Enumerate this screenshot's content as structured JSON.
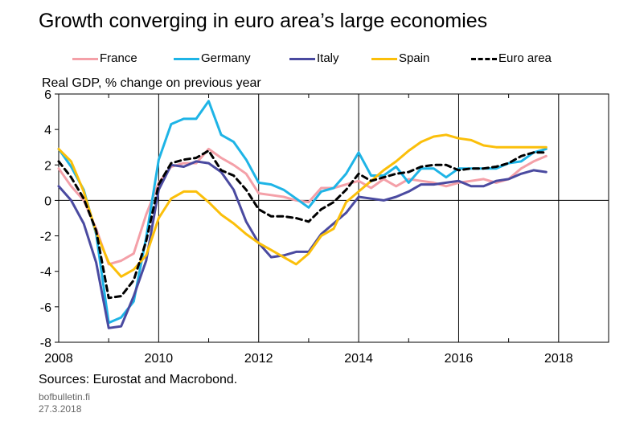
{
  "title": "Growth converging in euro area’s large economies",
  "unit_label": "Real GDP, % change on previous year",
  "sources": "Sources: Eurostat and Macrobond.",
  "site": "bofbulletin.fi",
  "date": "27.3.2018",
  "chart_data": {
    "type": "line",
    "title": "Growth converging in euro area’s large economies",
    "ylabel": "Real GDP, % change on previous year",
    "xlabel": "",
    "xlim": [
      2008,
      2019
    ],
    "ylim": [
      -8,
      6
    ],
    "x_ticks": [
      2008,
      2010,
      2012,
      2014,
      2016,
      2018
    ],
    "y_ticks": [
      6,
      4,
      2,
      0,
      -2,
      -4,
      -6,
      -8
    ],
    "grid": "vertical",
    "legend_position": "top",
    "x": [
      2008.0,
      2008.25,
      2008.5,
      2008.75,
      2009.0,
      2009.25,
      2009.5,
      2009.75,
      2010.0,
      2010.25,
      2010.5,
      2010.75,
      2011.0,
      2011.25,
      2011.5,
      2011.75,
      2012.0,
      2012.25,
      2012.5,
      2012.75,
      2013.0,
      2013.25,
      2013.5,
      2013.75,
      2014.0,
      2014.25,
      2014.5,
      2014.75,
      2015.0,
      2015.25,
      2015.5,
      2015.75,
      2016.0,
      2016.25,
      2016.5,
      2016.75,
      2017.0,
      2017.25,
      2017.5,
      2017.75
    ],
    "series": [
      {
        "name": "France",
        "color": "#f4a0a8",
        "dash": "solid",
        "values": [
          1.8,
          0.8,
          0.0,
          -1.6,
          -3.6,
          -3.4,
          -3.0,
          -0.8,
          1.0,
          1.9,
          2.1,
          2.1,
          2.9,
          2.4,
          2.0,
          1.5,
          0.4,
          0.3,
          0.2,
          0.0,
          -0.1,
          0.7,
          0.7,
          0.9,
          1.1,
          0.7,
          1.2,
          0.8,
          1.2,
          1.1,
          1.0,
          0.8,
          1.0,
          1.1,
          1.2,
          1.0,
          1.2,
          1.8,
          2.2,
          2.5
        ]
      },
      {
        "name": "Germany",
        "color": "#1eb4e6",
        "dash": "solid",
        "values": [
          2.9,
          1.9,
          0.6,
          -1.9,
          -6.9,
          -6.6,
          -5.7,
          -2.1,
          2.3,
          4.3,
          4.6,
          4.6,
          5.6,
          3.7,
          3.3,
          2.3,
          1.0,
          0.9,
          0.6,
          0.1,
          -0.4,
          0.5,
          0.7,
          1.5,
          2.7,
          1.4,
          1.4,
          1.9,
          1.0,
          1.8,
          1.8,
          1.3,
          1.8,
          1.8,
          1.8,
          1.8,
          2.1,
          2.2,
          2.7,
          2.9
        ]
      },
      {
        "name": "Italy",
        "color": "#4a4aa0",
        "dash": "solid",
        "values": [
          0.8,
          0.0,
          -1.3,
          -3.5,
          -7.2,
          -7.1,
          -5.4,
          -3.4,
          0.6,
          2.0,
          1.9,
          2.2,
          2.1,
          1.6,
          0.6,
          -1.2,
          -2.4,
          -3.2,
          -3.1,
          -2.9,
          -2.9,
          -1.9,
          -1.3,
          -0.7,
          0.2,
          0.1,
          0.0,
          0.2,
          0.5,
          0.9,
          0.9,
          1.0,
          1.1,
          0.8,
          0.8,
          1.1,
          1.2,
          1.5,
          1.7,
          1.6
        ]
      },
      {
        "name": "Spain",
        "color": "#fbbf0a",
        "dash": "solid",
        "values": [
          2.9,
          2.2,
          0.5,
          -1.8,
          -3.5,
          -4.3,
          -3.9,
          -3.1,
          -1.0,
          0.1,
          0.5,
          0.5,
          -0.1,
          -0.8,
          -1.3,
          -1.9,
          -2.4,
          -2.8,
          -3.2,
          -3.6,
          -3.0,
          -2.0,
          -1.6,
          -0.1,
          0.5,
          1.1,
          1.7,
          2.2,
          2.8,
          3.3,
          3.6,
          3.7,
          3.5,
          3.4,
          3.1,
          3.0,
          3.0,
          3.0,
          3.0,
          3.0
        ]
      },
      {
        "name": "Euro area",
        "color": "#000000",
        "dash": "dashed",
        "values": [
          2.2,
          1.3,
          0.1,
          -1.7,
          -5.5,
          -5.4,
          -4.5,
          -2.3,
          0.9,
          2.1,
          2.3,
          2.4,
          2.8,
          1.7,
          1.4,
          0.6,
          -0.5,
          -0.9,
          -0.9,
          -1.0,
          -1.2,
          -0.5,
          -0.1,
          0.6,
          1.5,
          1.1,
          1.3,
          1.5,
          1.6,
          1.9,
          2.0,
          2.0,
          1.7,
          1.8,
          1.8,
          1.9,
          2.1,
          2.5,
          2.7,
          2.7
        ]
      }
    ]
  }
}
